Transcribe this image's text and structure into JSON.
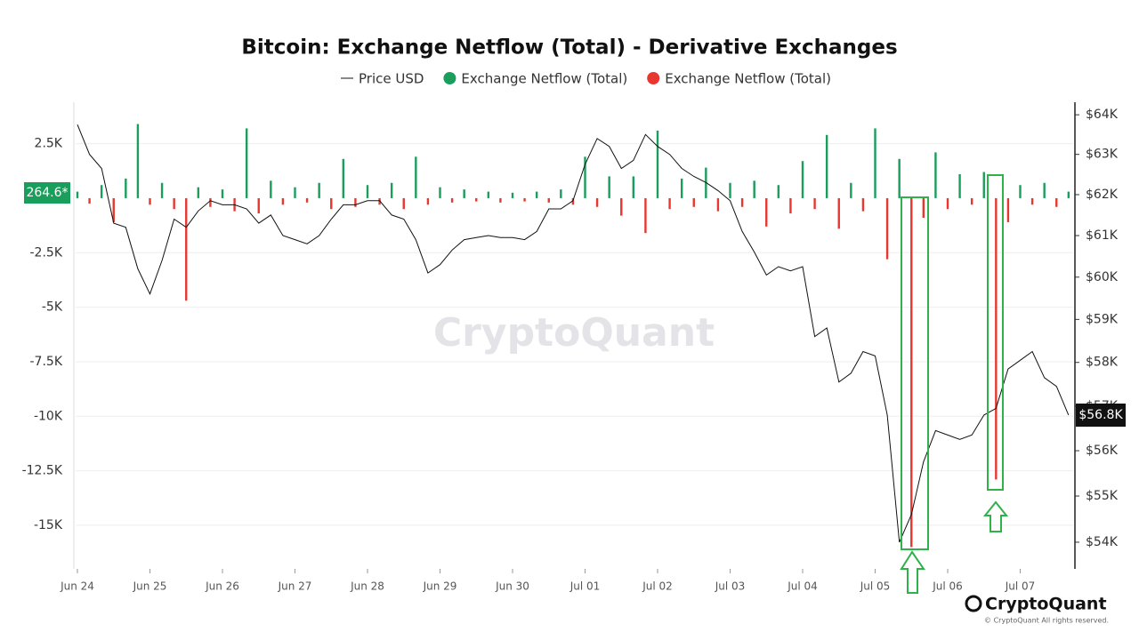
{
  "chart_data": {
    "type": "combo",
    "title": "Bitcoin: Exchange Netflow (Total) - Derivative Exchanges",
    "watermark": "CryptoQuant",
    "brand": "CryptoQuant",
    "copyright": "© CryptoQuant All rights reserved.",
    "annotations": [
      "264.6*",
      "$56.8K"
    ],
    "categories": [
      "Jun 24",
      null,
      null,
      null,
      null,
      null,
      "Jun 25",
      null,
      null,
      null,
      null,
      null,
      "Jun 26",
      null,
      null,
      null,
      null,
      null,
      "Jun 27",
      null,
      null,
      null,
      null,
      null,
      "Jun 28",
      null,
      null,
      null,
      null,
      null,
      "Jun 29",
      null,
      null,
      null,
      null,
      null,
      "Jun 30",
      null,
      null,
      null,
      null,
      null,
      "Jul 01",
      null,
      null,
      null,
      null,
      null,
      "Jul 02",
      null,
      null,
      null,
      null,
      null,
      "Jul 03",
      null,
      null,
      null,
      null,
      null,
      "Jul 04",
      null,
      null,
      null,
      null,
      null,
      "Jul 05",
      null,
      null,
      null,
      null,
      null,
      "Jul 06",
      null,
      null,
      null,
      null,
      null,
      "Jul 07",
      null,
      null,
      null,
      null
    ],
    "series": [
      {
        "name": "Price USD",
        "type": "line",
        "axis": "y2",
        "color": "#111111",
        "values": [
          63750,
          63000,
          62650,
          61300,
          61200,
          60200,
          59600,
          60400,
          61400,
          61200,
          61600,
          61850,
          61750,
          61750,
          61650,
          61300,
          61500,
          61000,
          60900,
          60800,
          61000,
          61400,
          61750,
          61750,
          61850,
          61850,
          61500,
          61400,
          60900,
          60100,
          60300,
          60650,
          60900,
          60950,
          61000,
          60950,
          60950,
          60900,
          61100,
          61650,
          61650,
          61850,
          62750,
          63400,
          63200,
          62650,
          62850,
          63500,
          63200,
          63000,
          62650,
          62450,
          62300,
          62100,
          61850,
          61100,
          60600,
          60050,
          60250,
          60150,
          60250,
          58600,
          58800,
          57550,
          57750,
          58250,
          58150,
          56800,
          54000,
          54600,
          55750,
          56450,
          56350,
          56250,
          56350,
          56800,
          56950,
          57850,
          58050,
          58250,
          57650,
          57450,
          56800
        ]
      },
      {
        "name": "Exchange Netflow (Total)",
        "type": "bar",
        "color": "#1a9e5c",
        "values": [
          300,
          null,
          600,
          null,
          900,
          3400,
          null,
          700,
          null,
          null,
          500,
          null,
          400,
          null,
          3200,
          null,
          800,
          null,
          500,
          null,
          700,
          null,
          1800,
          null,
          600,
          null,
          700,
          null,
          1900,
          null,
          500,
          null,
          400,
          null,
          300,
          null,
          250,
          null,
          300,
          null,
          400,
          null,
          1900,
          null,
          1000,
          null,
          1000,
          null,
          3100,
          null,
          900,
          null,
          1400,
          null,
          700,
          null,
          800,
          null,
          600,
          null,
          1700,
          null,
          2900,
          null,
          700,
          null,
          3200,
          null,
          1800,
          null,
          null,
          2100,
          null,
          1100,
          null,
          1200,
          null,
          null,
          600,
          null,
          700,
          null,
          300
        ]
      },
      {
        "name": "Exchange Netflow (Total)",
        "type": "bar",
        "color": "#e8372f",
        "values": [
          null,
          -250,
          null,
          -1100,
          null,
          null,
          -300,
          null,
          -500,
          -4700,
          null,
          -400,
          null,
          -600,
          null,
          -700,
          null,
          -300,
          null,
          -200,
          null,
          -500,
          null,
          -400,
          null,
          -300,
          null,
          -500,
          null,
          -300,
          null,
          -200,
          null,
          -150,
          null,
          -200,
          null,
          -150,
          null,
          -200,
          null,
          -300,
          null,
          -400,
          null,
          -800,
          null,
          -1600,
          null,
          -500,
          null,
          -400,
          null,
          -600,
          null,
          -400,
          null,
          -1300,
          null,
          -700,
          null,
          -500,
          null,
          -1400,
          null,
          -600,
          null,
          -2800,
          null,
          -16000,
          -900,
          null,
          -500,
          null,
          -300,
          null,
          -12900,
          -1100,
          null,
          -300,
          null,
          -400,
          null
        ]
      }
    ],
    "ylim": [
      -17000,
      4400
    ],
    "yticks": [
      {
        "value": 2500,
        "label": "2.5K"
      },
      {
        "value": -2500,
        "label": "-2.5K"
      },
      {
        "value": -5000,
        "label": "-5K"
      },
      {
        "value": -7500,
        "label": "-7.5K"
      },
      {
        "value": -10000,
        "label": "-10K"
      },
      {
        "value": -12500,
        "label": "-12.5K"
      },
      {
        "value": -15000,
        "label": "-15K"
      }
    ],
    "y2lim": [
      53430,
      64320
    ],
    "y2log": true,
    "y2ticks": [
      {
        "value": 64000,
        "label": "$64K"
      },
      {
        "value": 63000,
        "label": "$63K"
      },
      {
        "value": 62000,
        "label": "$62K"
      },
      {
        "value": 61000,
        "label": "$61K"
      },
      {
        "value": 60000,
        "label": "$60K"
      },
      {
        "value": 59000,
        "label": "$59K"
      },
      {
        "value": 58000,
        "label": "$58K"
      },
      {
        "value": 57000,
        "label": "$57K"
      },
      {
        "value": 56000,
        "label": "$56K"
      },
      {
        "value": 55000,
        "label": "$55K"
      },
      {
        "value": 54000,
        "label": "$54K"
      }
    ],
    "grid": true
  }
}
